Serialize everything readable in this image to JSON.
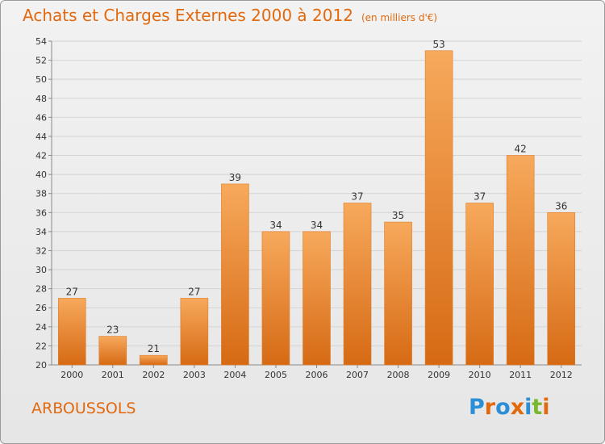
{
  "header": {
    "title": "Achats et Charges Externes 2000 à 2012",
    "unit": "(en milliers d'€)"
  },
  "commune": "ARBOUSSOLS",
  "logo": {
    "text": "Proxiti",
    "colors": [
      "#2a8fd6",
      "#e2690e",
      "#2a8fd6",
      "#e2690e",
      "#2a8fd6",
      "#79b82e",
      "#e2690e"
    ]
  },
  "colors": {
    "accent": "#e2690e",
    "bar_light": "#f7a95c",
    "bar_dark": "#d66a14"
  },
  "chart_data": {
    "type": "bar",
    "title": "Achats et Charges Externes 2000 à 2012",
    "subtitle": "(en milliers d'€)",
    "categories": [
      "2000",
      "2001",
      "2002",
      "2003",
      "2004",
      "2005",
      "2006",
      "2007",
      "2008",
      "2009",
      "2010",
      "2011",
      "2012"
    ],
    "values": [
      27,
      23,
      21,
      27,
      39,
      34,
      34,
      37,
      35,
      53,
      37,
      42,
      36
    ],
    "data_labels": [
      "27",
      "23",
      "21",
      "27",
      "39",
      "34",
      "34",
      "37",
      "35",
      "53",
      "37",
      "42",
      "36"
    ],
    "ylim": [
      20,
      54
    ],
    "yticks": [
      20,
      22,
      24,
      26,
      28,
      30,
      32,
      34,
      36,
      38,
      40,
      42,
      44,
      46,
      48,
      50,
      52,
      54
    ],
    "ytick_labels": [
      "20",
      "22",
      "24",
      "26",
      "28",
      "30",
      "32",
      "34",
      "36",
      "38",
      "40",
      "42",
      "44",
      "46",
      "48",
      "50",
      "52",
      "54"
    ],
    "grid": true,
    "xlabel": "",
    "ylabel": ""
  }
}
